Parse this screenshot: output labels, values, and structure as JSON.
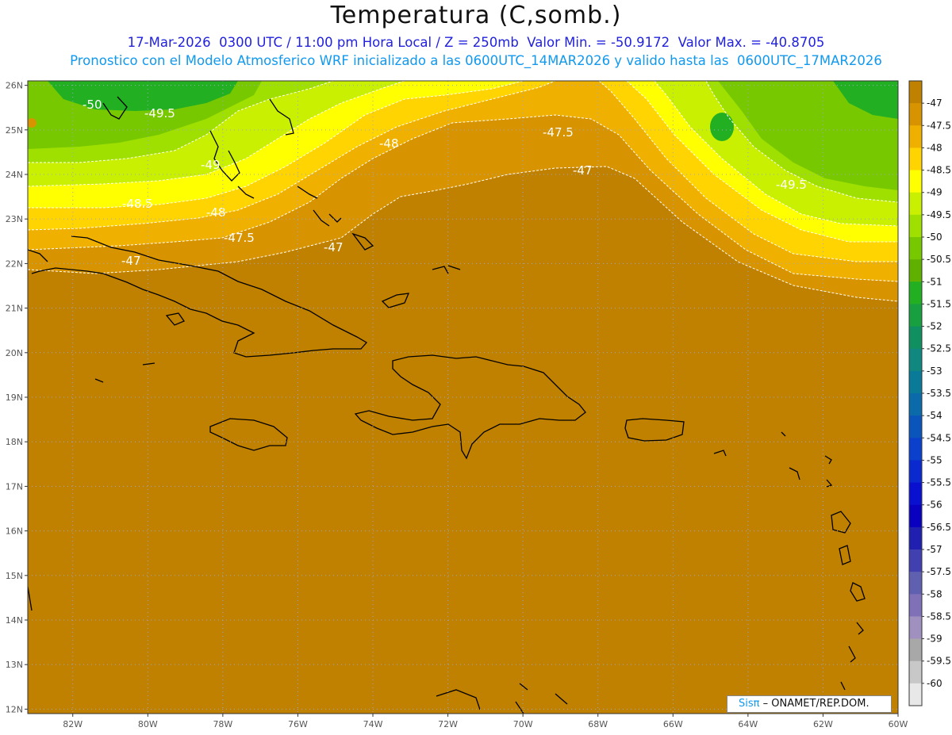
{
  "title": "Temperatura (C,somb.)",
  "subtitle_line1": "17-Mar-2026  0300 UTC / 11:00 pm Hora Local / Z = 250mb  Valor Min. = -50.9172  Valor Max. = -40.8705",
  "subtitle_line2": "Pronostico con el Modelo Atmosferico WRF inicializado a las 0600UTC_14MAR2026 y valido hasta las  0600UTC_17MAR2026",
  "credit": {
    "brand": "Sisπ",
    "text": " –  ONAMET/REP.DOM."
  },
  "map": {
    "lon_range": [
      -83.2,
      -60
    ],
    "lat_range": [
      11.9,
      26.1
    ],
    "lat_ticks": [
      "26N",
      "25N",
      "24N",
      "23N",
      "22N",
      "21N",
      "20N",
      "19N",
      "18N",
      "17N",
      "16N",
      "15N",
      "14N",
      "13N",
      "12N"
    ],
    "lon_ticks": [
      "82W",
      "80W",
      "78W",
      "76W",
      "74W",
      "72W",
      "70W",
      "68W",
      "66W",
      "64W",
      "62W",
      "60W"
    ],
    "contour_labels": [
      "-50",
      "-49.5",
      "-49",
      "-48.5",
      "-48",
      "-47.5",
      "-47",
      "-47.5",
      "-47",
      "-49.5",
      "-48",
      "-47"
    ]
  },
  "colorbar": {
    "labels": [
      "-47",
      "-47.5",
      "-48",
      "-48.5",
      "-49",
      "-49.5",
      "-50",
      "-50.5",
      "-51",
      "-51.5",
      "-52",
      "-52.5",
      "-53",
      "-53.5",
      "-54",
      "-54.5",
      "-55",
      "-55.5",
      "-56",
      "-56.5",
      "-57",
      "-57.5",
      "-58",
      "-58.5",
      "-59",
      "-59.5",
      "-60"
    ],
    "colors": [
      "#c08000",
      "#d89400",
      "#f0b000",
      "#ffd400",
      "#ffff00",
      "#c8f000",
      "#a0e000",
      "#78c800",
      "#60b000",
      "#22b022",
      "#18a040",
      "#109060",
      "#108880",
      "#0a7a99",
      "#0a6aaa",
      "#0a55bb",
      "#0a40cc",
      "#0a2ad0",
      "#0a10d0",
      "#0a00c0",
      "#2020b0",
      "#4040b0",
      "#6060b0",
      "#8070b8",
      "#a090c0",
      "#a8a8a8",
      "#c8c8c8",
      "#e8e8e8"
    ]
  }
}
